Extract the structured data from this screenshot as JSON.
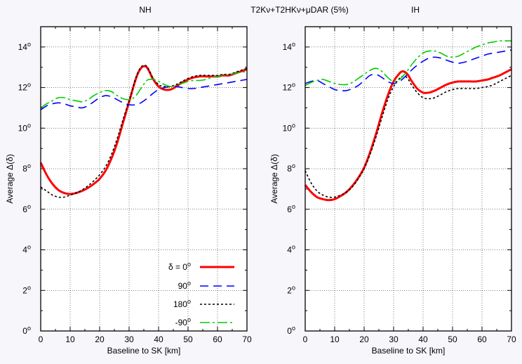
{
  "figure_title": "T2Kν+T2HKν+μDAR (5%)",
  "chart_data": [
    {
      "type": "line",
      "title": "NH",
      "xlabel": "Baseline to SK [km]",
      "ylabel": "Average Δ(δ)",
      "xlim": [
        0,
        70
      ],
      "ylim": [
        0,
        15
      ],
      "x_ticks": [
        "0",
        "10",
        "20",
        "30",
        "40",
        "50",
        "60",
        "70"
      ],
      "y_tick_values": [
        0,
        2,
        4,
        6,
        8,
        10,
        12,
        14
      ],
      "y_tick_labels": [
        "0",
        "2",
        "4",
        "6",
        "8",
        "10",
        "12",
        "14"
      ],
      "y_tick_unit": "o",
      "grid": true,
      "legend_placement": "bottom-right",
      "series": [
        {
          "name": "δ = 0",
          "unit": "o",
          "color": "#ff0000",
          "style": "solid",
          "x": [
            0,
            2,
            4,
            6,
            8,
            10,
            12,
            14,
            16,
            18,
            20,
            22,
            24,
            26,
            28,
            30,
            31,
            32,
            33,
            34,
            35,
            36,
            37,
            38,
            40,
            42,
            44,
            46,
            48,
            50,
            52,
            54,
            56,
            58,
            60,
            62,
            64,
            66,
            68,
            70
          ],
          "y": [
            8.3,
            7.7,
            7.25,
            6.95,
            6.8,
            6.75,
            6.8,
            6.9,
            7.05,
            7.25,
            7.5,
            7.9,
            8.5,
            9.3,
            10.3,
            11.3,
            11.8,
            12.3,
            12.7,
            12.95,
            13.05,
            13.0,
            12.75,
            12.45,
            12.05,
            11.9,
            11.9,
            12.05,
            12.25,
            12.4,
            12.5,
            12.55,
            12.55,
            12.55,
            12.55,
            12.6,
            12.6,
            12.7,
            12.8,
            12.9
          ]
        },
        {
          "name": "90",
          "unit": "o",
          "color": "#0000ff",
          "style": "dashed",
          "x": [
            0,
            2,
            4,
            6,
            8,
            10,
            12,
            14,
            16,
            18,
            20,
            22,
            24,
            26,
            28,
            30,
            32,
            34,
            36,
            38,
            40,
            42,
            44,
            46,
            48,
            50,
            52,
            54,
            56,
            58,
            60,
            62,
            64,
            66,
            68,
            70
          ],
          "y": [
            10.9,
            11.1,
            11.2,
            11.25,
            11.2,
            11.1,
            11.05,
            11.0,
            11.1,
            11.3,
            11.5,
            11.6,
            11.55,
            11.4,
            11.25,
            11.15,
            11.15,
            11.25,
            11.45,
            11.7,
            11.9,
            12.0,
            12.05,
            12.05,
            12.0,
            11.95,
            11.95,
            12.0,
            12.05,
            12.1,
            12.15,
            12.2,
            12.25,
            12.3,
            12.35,
            12.4
          ]
        },
        {
          "name": "180",
          "unit": "o",
          "color": "#000000",
          "style": "dotted",
          "x": [
            0,
            2,
            4,
            6,
            8,
            10,
            12,
            14,
            16,
            18,
            20,
            22,
            24,
            26,
            28,
            30,
            31,
            32,
            33,
            34,
            35,
            36,
            37,
            38,
            40,
            42,
            44,
            46,
            48,
            50,
            52,
            54,
            56,
            58,
            60,
            62,
            64,
            66,
            68,
            70
          ],
          "y": [
            7.1,
            6.9,
            6.7,
            6.6,
            6.6,
            6.7,
            6.8,
            6.95,
            7.15,
            7.4,
            7.7,
            8.1,
            8.7,
            9.5,
            10.45,
            11.35,
            11.85,
            12.35,
            12.75,
            13.0,
            13.1,
            13.05,
            12.8,
            12.5,
            12.15,
            12.05,
            12.05,
            12.15,
            12.3,
            12.45,
            12.55,
            12.6,
            12.6,
            12.6,
            12.6,
            12.65,
            12.65,
            12.75,
            12.85,
            12.95
          ]
        },
        {
          "name": "-90",
          "unit": "o",
          "color": "#00cc00",
          "style": "dashdot",
          "x": [
            0,
            2,
            4,
            6,
            8,
            10,
            12,
            14,
            16,
            18,
            20,
            22,
            24,
            26,
            28,
            30,
            32,
            34,
            36,
            38,
            40,
            42,
            44,
            46,
            48,
            50,
            52,
            54,
            56,
            58,
            60,
            62,
            64,
            66,
            68,
            70
          ],
          "y": [
            11.0,
            11.2,
            11.35,
            11.5,
            11.5,
            11.4,
            11.35,
            11.3,
            11.4,
            11.6,
            11.75,
            11.85,
            11.8,
            11.6,
            11.45,
            11.4,
            11.55,
            11.95,
            12.35,
            12.4,
            12.3,
            12.15,
            12.05,
            12.1,
            12.2,
            12.3,
            12.35,
            12.35,
            12.4,
            12.5,
            12.55,
            12.6,
            12.65,
            12.7,
            12.75,
            12.8
          ]
        }
      ]
    },
    {
      "type": "line",
      "title": "IH",
      "xlabel": "Baseline to SK [km]",
      "ylabel": "Average Δ(δ)",
      "xlim": [
        0,
        70
      ],
      "ylim": [
        0,
        15
      ],
      "x_ticks": [
        "0",
        "10",
        "20",
        "30",
        "40",
        "50",
        "60",
        "70"
      ],
      "y_tick_values": [
        0,
        2,
        4,
        6,
        8,
        10,
        12,
        14
      ],
      "y_tick_labels": [
        "0",
        "2",
        "4",
        "6",
        "8",
        "10",
        "12",
        "14"
      ],
      "y_tick_unit": "o",
      "grid": true,
      "series": [
        {
          "name": "δ = 0",
          "color": "#ff0000",
          "style": "solid",
          "x": [
            0,
            2,
            4,
            6,
            8,
            10,
            12,
            14,
            16,
            18,
            20,
            22,
            24,
            26,
            28,
            30,
            32,
            33,
            34,
            35,
            36,
            38,
            40,
            42,
            44,
            46,
            48,
            50,
            52,
            54,
            56,
            58,
            60,
            62,
            64,
            66,
            68,
            70
          ],
          "y": [
            7.2,
            6.85,
            6.6,
            6.5,
            6.45,
            6.5,
            6.65,
            6.85,
            7.15,
            7.55,
            8.05,
            8.8,
            9.7,
            10.7,
            11.6,
            12.3,
            12.7,
            12.8,
            12.75,
            12.6,
            12.35,
            11.95,
            11.75,
            11.75,
            11.85,
            12.0,
            12.15,
            12.25,
            12.3,
            12.3,
            12.3,
            12.3,
            12.35,
            12.4,
            12.5,
            12.6,
            12.75,
            12.9
          ]
        },
        {
          "name": "90",
          "color": "#0000ff",
          "style": "dashed",
          "x": [
            0,
            2,
            4,
            6,
            8,
            10,
            12,
            14,
            16,
            18,
            20,
            22,
            24,
            26,
            28,
            30,
            32,
            34,
            36,
            38,
            40,
            42,
            44,
            46,
            48,
            50,
            52,
            54,
            56,
            58,
            60,
            62,
            64,
            66,
            68,
            70
          ],
          "y": [
            12.2,
            12.3,
            12.35,
            12.2,
            12.05,
            11.9,
            11.85,
            11.85,
            11.95,
            12.1,
            12.35,
            12.6,
            12.65,
            12.5,
            12.3,
            12.2,
            12.3,
            12.55,
            12.85,
            13.1,
            13.3,
            13.45,
            13.5,
            13.45,
            13.35,
            13.25,
            13.2,
            13.25,
            13.35,
            13.45,
            13.55,
            13.65,
            13.7,
            13.75,
            13.8,
            13.85
          ]
        },
        {
          "name": "180",
          "color": "#000000",
          "style": "dotted",
          "x": [
            0,
            2,
            4,
            6,
            8,
            10,
            12,
            14,
            16,
            18,
            20,
            22,
            24,
            26,
            28,
            30,
            32,
            33,
            34,
            35,
            36,
            38,
            40,
            42,
            44,
            46,
            48,
            50,
            52,
            54,
            56,
            58,
            60,
            62,
            64,
            66,
            68,
            70
          ],
          "y": [
            7.9,
            7.3,
            6.9,
            6.7,
            6.6,
            6.6,
            6.7,
            6.85,
            7.1,
            7.5,
            8.0,
            8.7,
            9.55,
            10.5,
            11.4,
            12.05,
            12.45,
            12.55,
            12.55,
            12.4,
            12.15,
            11.75,
            11.5,
            11.45,
            11.5,
            11.65,
            11.8,
            11.9,
            11.95,
            11.95,
            11.95,
            11.95,
            12.0,
            12.05,
            12.15,
            12.3,
            12.45,
            12.6
          ]
        },
        {
          "name": "-90",
          "color": "#00cc00",
          "style": "dashdot",
          "x": [
            0,
            2,
            4,
            6,
            8,
            10,
            12,
            14,
            16,
            18,
            20,
            22,
            24,
            26,
            28,
            30,
            32,
            34,
            36,
            38,
            40,
            42,
            44,
            46,
            48,
            50,
            52,
            54,
            56,
            58,
            60,
            62,
            64,
            66,
            68,
            70
          ],
          "y": [
            12.1,
            12.25,
            12.35,
            12.4,
            12.3,
            12.2,
            12.15,
            12.15,
            12.25,
            12.45,
            12.65,
            12.85,
            12.95,
            12.8,
            12.5,
            12.3,
            12.4,
            12.7,
            13.1,
            13.45,
            13.7,
            13.8,
            13.8,
            13.7,
            13.55,
            13.5,
            13.55,
            13.7,
            13.85,
            14.0,
            14.1,
            14.2,
            14.25,
            14.3,
            14.3,
            14.3
          ]
        }
      ]
    }
  ]
}
